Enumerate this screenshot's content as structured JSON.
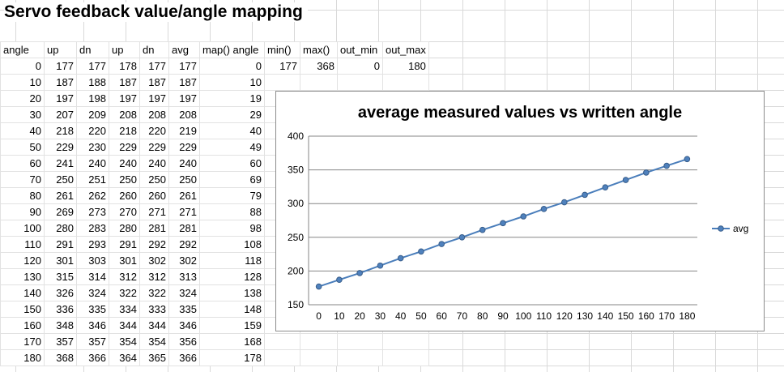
{
  "sheet": {
    "title": "Servo feedback value/angle mapping",
    "headers": [
      "angle",
      "up",
      "dn",
      "up",
      "dn",
      "avg",
      "map() angle",
      "min()",
      "max()",
      "out_min",
      "out_max"
    ],
    "rows": [
      [
        "0",
        "177",
        "177",
        "178",
        "177",
        "177",
        "0",
        "177",
        "368",
        "0",
        "180"
      ],
      [
        "10",
        "187",
        "188",
        "187",
        "187",
        "187",
        "10",
        "",
        "",
        "",
        ""
      ],
      [
        "20",
        "197",
        "198",
        "197",
        "197",
        "197",
        "19",
        "",
        "",
        "",
        ""
      ],
      [
        "30",
        "207",
        "209",
        "208",
        "208",
        "208",
        "29",
        "",
        "",
        "",
        ""
      ],
      [
        "40",
        "218",
        "220",
        "218",
        "220",
        "219",
        "40",
        "",
        "",
        "",
        ""
      ],
      [
        "50",
        "229",
        "230",
        "229",
        "229",
        "229",
        "49",
        "",
        "",
        "",
        ""
      ],
      [
        "60",
        "241",
        "240",
        "240",
        "240",
        "240",
        "60",
        "",
        "",
        "",
        ""
      ],
      [
        "70",
        "250",
        "251",
        "250",
        "250",
        "250",
        "69",
        "",
        "",
        "",
        ""
      ],
      [
        "80",
        "261",
        "262",
        "260",
        "260",
        "261",
        "79",
        "",
        "",
        "",
        ""
      ],
      [
        "90",
        "269",
        "273",
        "270",
        "271",
        "271",
        "88",
        "",
        "",
        "",
        ""
      ],
      [
        "100",
        "280",
        "283",
        "280",
        "281",
        "281",
        "98",
        "",
        "",
        "",
        ""
      ],
      [
        "110",
        "291",
        "293",
        "291",
        "292",
        "292",
        "108",
        "",
        "",
        "",
        ""
      ],
      [
        "120",
        "301",
        "303",
        "301",
        "302",
        "302",
        "118",
        "",
        "",
        "",
        ""
      ],
      [
        "130",
        "315",
        "314",
        "312",
        "312",
        "313",
        "128",
        "",
        "",
        "",
        ""
      ],
      [
        "140",
        "326",
        "324",
        "322",
        "322",
        "324",
        "138",
        "",
        "",
        "",
        ""
      ],
      [
        "150",
        "336",
        "335",
        "334",
        "333",
        "335",
        "148",
        "",
        "",
        "",
        ""
      ],
      [
        "160",
        "348",
        "346",
        "344",
        "344",
        "346",
        "159",
        "",
        "",
        "",
        ""
      ],
      [
        "170",
        "357",
        "357",
        "354",
        "354",
        "356",
        "168",
        "",
        "",
        "",
        ""
      ],
      [
        "180",
        "368",
        "366",
        "364",
        "365",
        "366",
        "178",
        "",
        "",
        "",
        ""
      ]
    ]
  },
  "chart_data": {
    "type": "line",
    "title": "average measured values vs written angle",
    "categories": [
      "0",
      "10",
      "20",
      "30",
      "40",
      "50",
      "60",
      "70",
      "80",
      "90",
      "100",
      "110",
      "120",
      "130",
      "140",
      "150",
      "160",
      "170",
      "180"
    ],
    "series": [
      {
        "name": "avg",
        "values": [
          177,
          187,
          197,
          208,
          219,
          229,
          240,
          250,
          261,
          271,
          281,
          292,
          302,
          313,
          324,
          335,
          346,
          356,
          366
        ]
      }
    ],
    "ylim": [
      150,
      400
    ],
    "yticks": [
      "150",
      "200",
      "250",
      "300",
      "350",
      "400"
    ],
    "grid": true,
    "legend": "right",
    "colors": {
      "series": "#4a7ebb",
      "marker_fill": "#4f81bd",
      "marker_stroke": "#385d8a",
      "grid": "#868686",
      "axis": "#868686"
    }
  }
}
